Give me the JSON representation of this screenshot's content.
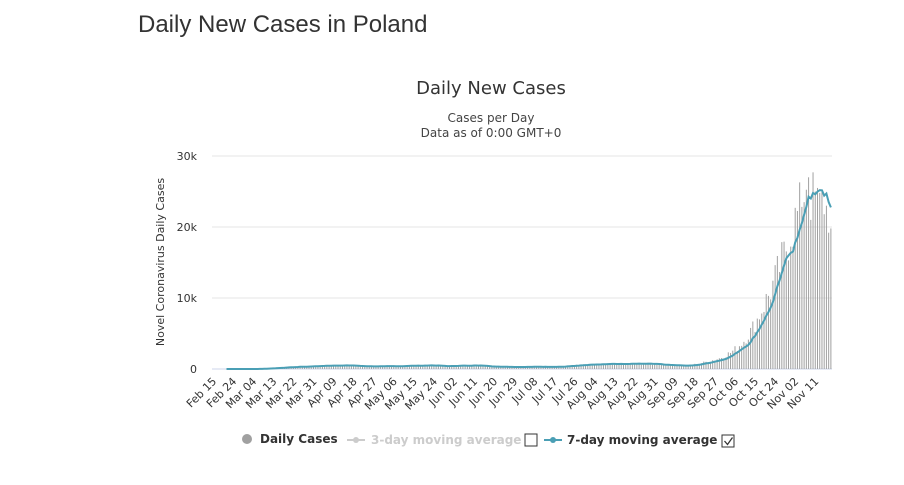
{
  "page": {
    "title": "Daily New Cases in Poland"
  },
  "colors": {
    "bars": "#a0a0a0",
    "line": "#4a9fb5",
    "grid": "#e6e6e6",
    "legend_disabled": "#cccccc"
  },
  "chart_data": {
    "type": "bar",
    "title": "Daily New Cases",
    "subtitle": "Cases per Day",
    "subtitle2": "Data as of 0:00 GMT+0",
    "xlabel": "",
    "ylabel": "Novel Coronavirus Daily Cases",
    "ylim": [
      0,
      30000
    ],
    "yticks": [
      0,
      10000,
      20000,
      30000
    ],
    "ytick_labels": [
      "0",
      "10k",
      "20k",
      "30k"
    ],
    "start_date": "Feb 15",
    "days": 278,
    "xtick_labels": [
      "Feb 15",
      "Feb 24",
      "Mar 04",
      "Mar 13",
      "Mar 22",
      "Mar 31",
      "Apr 09",
      "Apr 18",
      "Apr 27",
      "May 06",
      "May 15",
      "May 24",
      "Jun 02",
      "Jun 11",
      "Jun 20",
      "Jun 29",
      "Jul 08",
      "Jul 17",
      "Jul 26",
      "Aug 04",
      "Aug 13",
      "Aug 22",
      "Aug 31",
      "Sep 09",
      "Sep 18",
      "Sep 27",
      "Oct 06",
      "Oct 15",
      "Oct 24",
      "Nov 02",
      "Nov 11"
    ],
    "xtick_days": [
      0,
      9,
      18,
      27,
      36,
      45,
      54,
      63,
      72,
      81,
      90,
      99,
      108,
      117,
      126,
      135,
      144,
      153,
      162,
      171,
      180,
      189,
      198,
      207,
      216,
      225,
      234,
      243,
      252,
      261,
      270
    ],
    "cases_profile": [
      [
        0,
        0
      ],
      [
        18,
        0
      ],
      [
        20,
        20
      ],
      [
        25,
        100
      ],
      [
        35,
        300
      ],
      [
        45,
        400
      ],
      [
        55,
        550
      ],
      [
        65,
        400
      ],
      [
        75,
        350
      ],
      [
        85,
        450
      ],
      [
        95,
        500
      ],
      [
        105,
        400
      ],
      [
        115,
        550
      ],
      [
        125,
        350
      ],
      [
        135,
        300
      ],
      [
        145,
        300
      ],
      [
        155,
        350
      ],
      [
        165,
        550
      ],
      [
        175,
        650
      ],
      [
        185,
        700
      ],
      [
        195,
        750
      ],
      [
        205,
        550
      ],
      [
        213,
        450
      ],
      [
        220,
        900
      ],
      [
        227,
        1500
      ],
      [
        232,
        2300
      ],
      [
        235,
        3000
      ],
      [
        238,
        4000
      ],
      [
        241,
        5300
      ],
      [
        244,
        7000
      ],
      [
        247,
        9000
      ],
      [
        250,
        11000
      ],
      [
        253,
        13500
      ],
      [
        256,
        16000
      ],
      [
        259,
        19500
      ],
      [
        262,
        21500
      ],
      [
        265,
        23500
      ],
      [
        267,
        27000
      ],
      [
        268,
        21000
      ],
      [
        269,
        27700
      ],
      [
        270,
        25000
      ],
      [
        271,
        25500
      ],
      [
        272,
        24800
      ],
      [
        273,
        25200
      ],
      [
        274,
        21800
      ],
      [
        275,
        23000
      ],
      [
        276,
        19200
      ],
      [
        277,
        19800
      ]
    ],
    "series": [
      {
        "name": "Daily Cases",
        "kind": "bar"
      },
      {
        "name": "3-day moving average",
        "kind": "line",
        "visible": false
      },
      {
        "name": "7-day moving average",
        "kind": "line",
        "visible": true
      }
    ]
  }
}
